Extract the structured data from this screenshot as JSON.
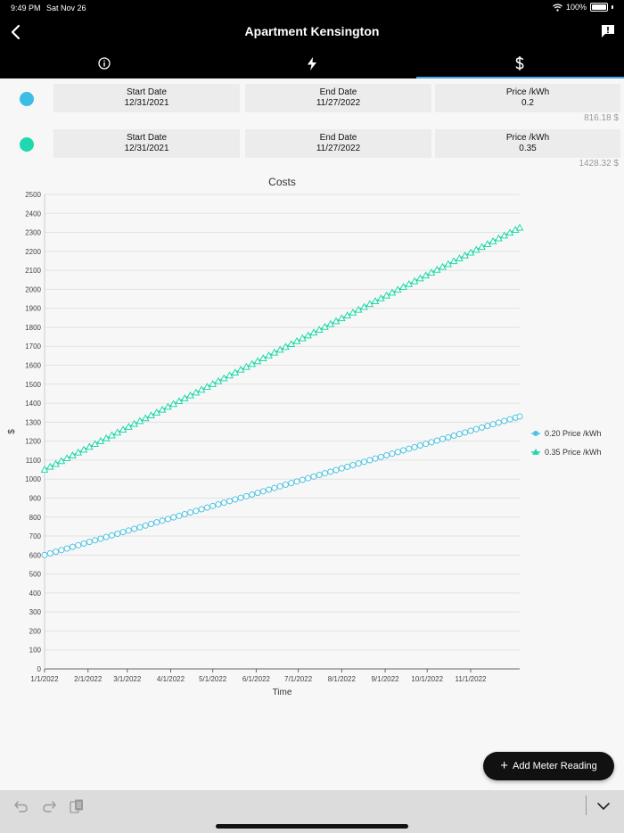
{
  "status_bar": {
    "time": "9:49 PM",
    "date": "Sat Nov 26",
    "battery": "100%"
  },
  "header": {
    "title": "Apartment Kensington"
  },
  "tabs": [
    {
      "name": "info",
      "icon": "info-icon"
    },
    {
      "name": "energy",
      "icon": "lightning-icon"
    },
    {
      "name": "costs",
      "icon": "dollar-icon",
      "active": true
    }
  ],
  "price_rows": [
    {
      "color": "#3bbde4",
      "start_label": "Start Date",
      "start_value": "12/31/2021",
      "end_label": "End Date",
      "end_value": "11/27/2022",
      "price_label": "Price /kWh",
      "price_value": "0.2",
      "total": "816.18 $"
    },
    {
      "color": "#1ed9ad",
      "start_label": "Start Date",
      "start_value": "12/31/2021",
      "end_label": "End Date",
      "end_value": "11/27/2022",
      "price_label": "Price /kWh",
      "price_value": "0.35",
      "total": "1428.32 $"
    }
  ],
  "chart_data": {
    "type": "line",
    "title": "Costs",
    "xlabel": "Time",
    "ylabel": "$",
    "ylim": [
      0,
      2500
    ],
    "yticks": [
      0,
      100,
      200,
      300,
      400,
      500,
      600,
      700,
      800,
      900,
      1000,
      1100,
      1200,
      1300,
      1400,
      1500,
      1600,
      1700,
      1800,
      1900,
      2000,
      2100,
      2200,
      2300,
      2400,
      2500
    ],
    "xlim": [
      "2022-01-01",
      "2022-12-06"
    ],
    "xtick_labels": [
      "1/1/2022",
      "2/1/2022",
      "3/1/2022",
      "4/1/2022",
      "5/1/2022",
      "6/1/2022",
      "7/1/2022",
      "8/1/2022",
      "9/1/2022",
      "10/1/2022",
      "11/1/2022"
    ],
    "xtick_dates": [
      "2022-01-01",
      "2022-02-01",
      "2022-03-01",
      "2022-04-01",
      "2022-05-01",
      "2022-06-01",
      "2022-07-01",
      "2022-08-01",
      "2022-09-01",
      "2022-10-01",
      "2022-11-01"
    ],
    "grid": true,
    "legend_position": "right",
    "series": [
      {
        "name": "0.20 Price /kWh",
        "color": "#4ec3df",
        "marker": "circle",
        "start": {
          "x": "2022-01-01",
          "y": 600
        },
        "end": {
          "x": "2022-12-06",
          "y": 1330
        }
      },
      {
        "name": "0.35 Price /kWh",
        "color": "#20d7a8",
        "marker": "triangle",
        "start": {
          "x": "2022-01-01",
          "y": 1050
        },
        "end": {
          "x": "2022-12-06",
          "y": 2325
        }
      }
    ]
  },
  "fab": {
    "label": "Add Meter Reading"
  }
}
